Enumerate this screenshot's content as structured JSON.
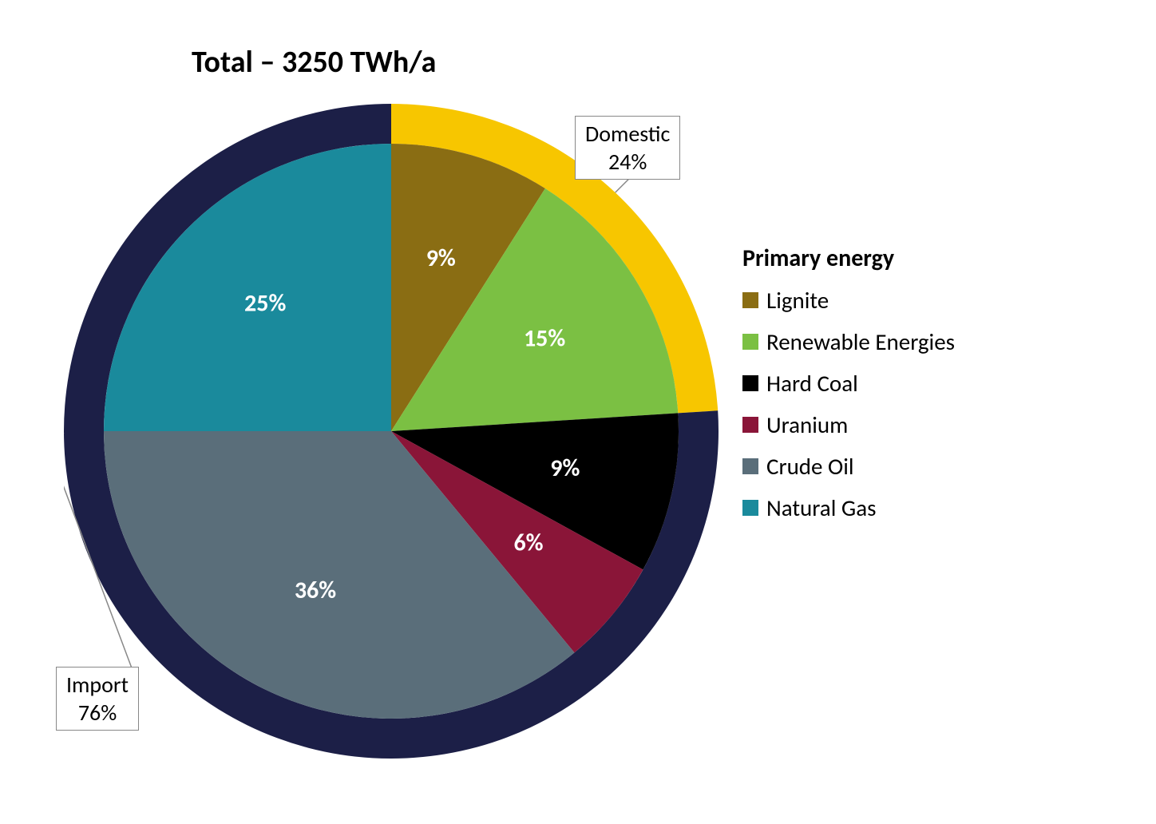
{
  "title": "Total – 3250 TWh/a",
  "chart": {
    "type": "pie",
    "title_fontsize": 38,
    "title_fontweight": "bold",
    "background_color": "#ffffff",
    "outer_radius": 410,
    "inner_radius": 360,
    "slice_label_fontsize": 30,
    "slice_label_fontweight": "bold",
    "slice_label_color": "#ffffff",
    "slices": [
      {
        "label": "Lignite",
        "value": 9,
        "color": "#8a6d13",
        "percent_label": "9%"
      },
      {
        "label": "Renewable Energies",
        "value": 15,
        "color": "#7bc043",
        "percent_label": "15%"
      },
      {
        "label": "Hard Coal",
        "value": 9,
        "color": "#000000",
        "percent_label": "9%"
      },
      {
        "label": "Uranium",
        "value": 6,
        "color": "#8a1538",
        "percent_label": "6%"
      },
      {
        "label": "Crude Oil",
        "value": 36,
        "color": "#5a6e7a",
        "percent_label": "36%"
      },
      {
        "label": "Natural Gas",
        "value": 25,
        "color": "#1a8a9c",
        "percent_label": "25%"
      }
    ],
    "outer_ring": {
      "segments": [
        {
          "label": "Domestic",
          "value": 24,
          "color": "#f7c600",
          "percent_label": "24%"
        },
        {
          "label": "Import",
          "value": 76,
          "color": "#1c1f47",
          "percent_label": "76%"
        }
      ]
    },
    "legend": {
      "title": "Primary energy",
      "title_fontsize": 30,
      "item_fontsize": 29,
      "swatch_size": 20,
      "text_color": "#000000",
      "items": [
        {
          "label": "Lignite",
          "color": "#8a6d13"
        },
        {
          "label": "Renewable Energies",
          "color": "#7bc043"
        },
        {
          "label": "Hard Coal",
          "color": "#000000"
        },
        {
          "label": "Uranium",
          "color": "#8a1538"
        },
        {
          "label": "Crude Oil",
          "color": "#5a6e7a"
        },
        {
          "label": "Natural Gas",
          "color": "#1a8a9c"
        }
      ]
    },
    "callouts": {
      "domestic": {
        "line1": "Domestic",
        "line2": "24%"
      },
      "import": {
        "line1": "Import",
        "line2": "76%"
      }
    }
  }
}
